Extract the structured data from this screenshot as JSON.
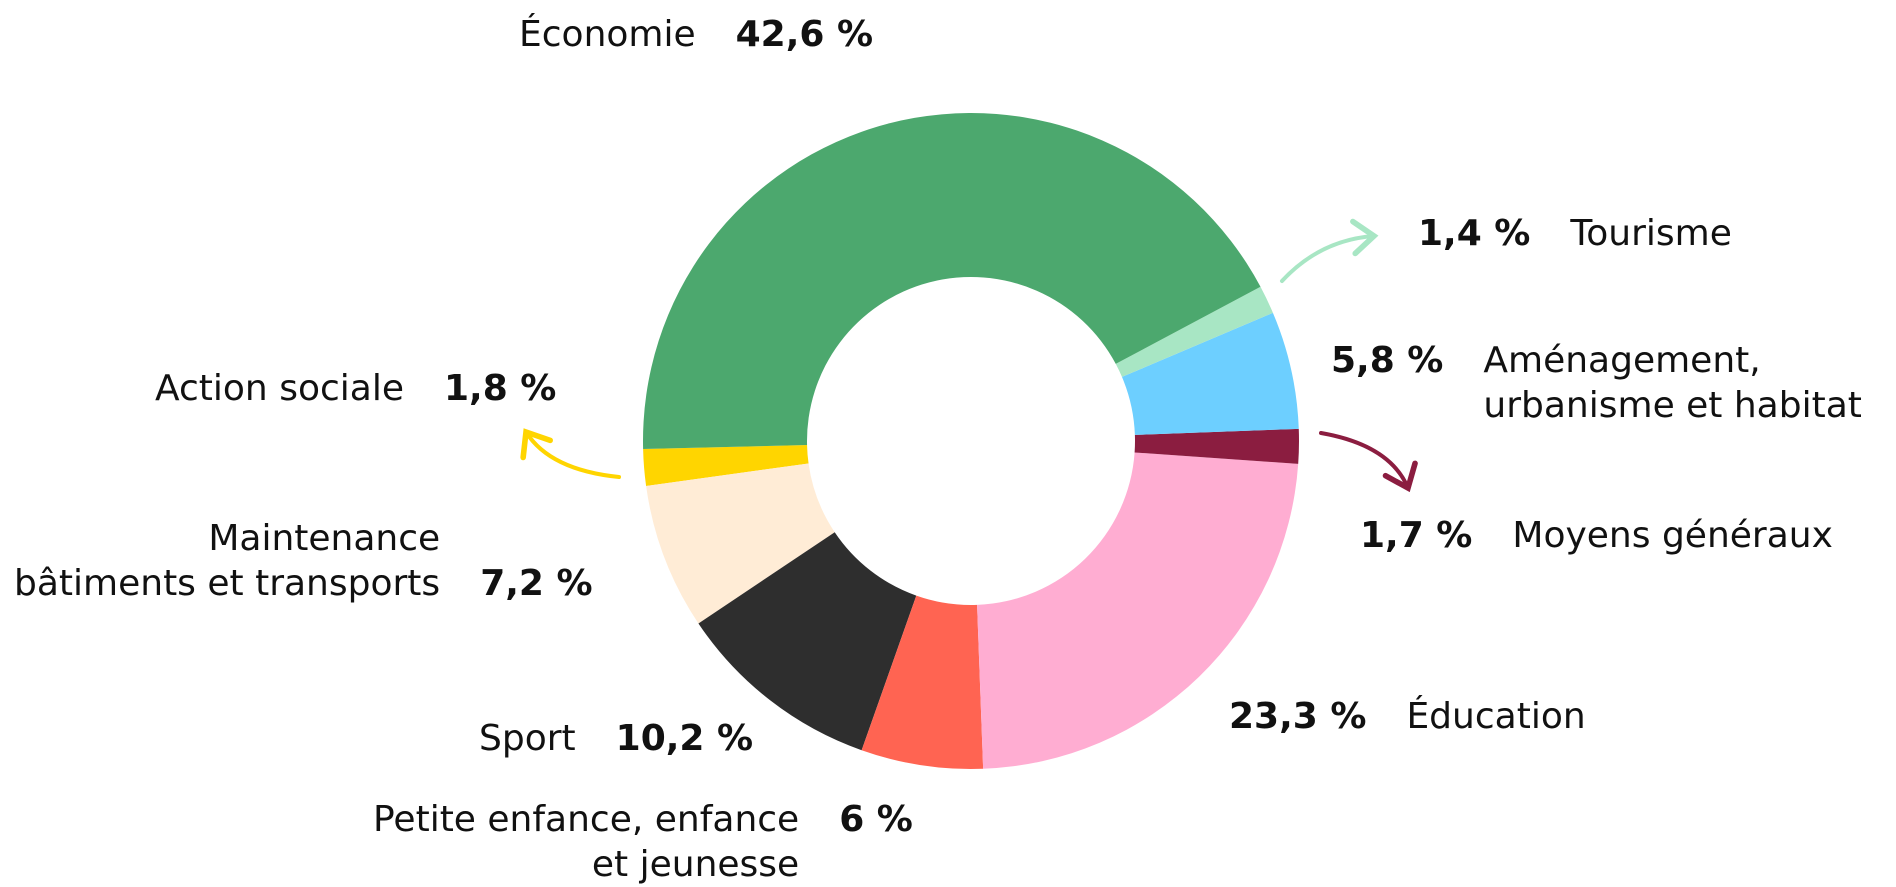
{
  "chart_data": {
    "type": "donut",
    "categories": [
      "Économie",
      "Tourisme",
      "Aménagement,\nurbanisme et habitat",
      "Moyens généraux",
      "Éducation",
      "Petite enfance, enfance\net jeunesse",
      "Sport",
      "Maintenance\nbâtiments et transports",
      "Action sociale"
    ],
    "values": [
      42.6,
      1.4,
      5.8,
      1.7,
      23.3,
      6,
      10.2,
      7.2,
      1.8
    ],
    "value_labels": [
      "42,6 %",
      "1,4 %",
      "5,8 %",
      "1,7 %",
      "23,3 %",
      "6 %",
      "10,2 %",
      "7,2 %",
      "1,8 %"
    ],
    "colors": [
      "#4ca86e",
      "#a8e6c4",
      "#6dcfff",
      "#8b1d40",
      "#ffadd2",
      "#ff6452",
      "#2e2e2e",
      "#ffecd6",
      "#ffd500"
    ]
  }
}
